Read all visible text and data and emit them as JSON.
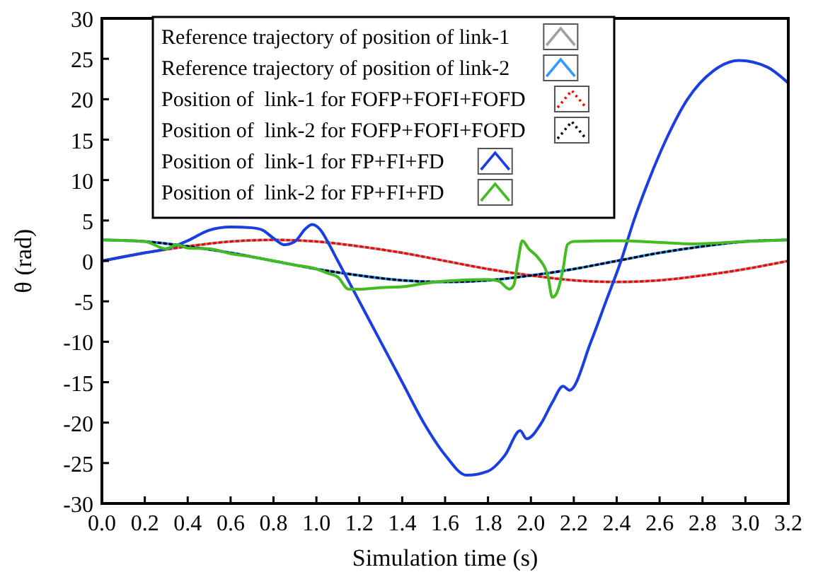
{
  "chart_data": {
    "type": "line",
    "xlabel": "Simulation time (s)",
    "ylabel": "θ (rad)",
    "xlim": [
      0,
      3.2
    ],
    "ylim": [
      -30,
      30
    ],
    "xticks": [
      {
        "value": 0,
        "label": "0.0"
      },
      0.2,
      0.4,
      0.6,
      0.8,
      {
        "value": 1,
        "label": "1.0"
      },
      1.2,
      1.4,
      1.6,
      1.8,
      {
        "value": 2,
        "label": "2.0"
      },
      2.2,
      2.4,
      2.6,
      2.8,
      {
        "value": 3,
        "label": "3.0"
      },
      3.2
    ],
    "yticks": [
      -30,
      -25,
      -20,
      -15,
      -10,
      -5,
      0,
      5,
      10,
      15,
      20,
      25,
      30
    ],
    "grid": false,
    "legend": "top left",
    "x": [
      0,
      0.2,
      0.4,
      0.6,
      0.8,
      1.0,
      1.2,
      1.4,
      1.6,
      1.8,
      2.0,
      2.2,
      2.4,
      2.6,
      2.8,
      3.0,
      3.2
    ],
    "series": [
      {
        "name": "Reference trajectory of position of link-1",
        "color": "#a0a0a0",
        "line_style": "solid",
        "values": [
          0,
          1.0,
          1.8,
          2.4,
          2.6,
          2.4,
          1.8,
          1.0,
          0,
          -1.0,
          -1.8,
          -2.4,
          -2.6,
          -2.4,
          -1.8,
          -1.0,
          0
        ]
      },
      {
        "name": "Reference trajectory of position of link-2",
        "color": "#3399ff",
        "line_style": "solid",
        "values": [
          2.6,
          2.4,
          1.8,
          1.0,
          0,
          -1.0,
          -1.8,
          -2.4,
          -2.6,
          -2.4,
          -1.8,
          -1.0,
          0,
          1.0,
          1.8,
          2.4,
          2.6
        ]
      },
      {
        "name": "Position of  link-1 for FOFP+FOFI+FOFD",
        "color": "#ff0000",
        "line_style": "dotted",
        "values": [
          0,
          1.0,
          1.8,
          2.4,
          2.6,
          2.4,
          1.8,
          1.0,
          0,
          -1.0,
          -1.8,
          -2.4,
          -2.6,
          -2.4,
          -1.8,
          -1.0,
          0
        ]
      },
      {
        "name": "Position of  link-2 for FOFP+FOFI+FOFD",
        "color": "#000000",
        "line_style": "dotted",
        "values": [
          2.6,
          2.4,
          1.8,
          1.0,
          0,
          -1.0,
          -1.8,
          -2.4,
          -2.6,
          -2.4,
          -1.8,
          -1.0,
          0,
          1.0,
          1.8,
          2.4,
          2.6
        ]
      },
      {
        "name": "Position of  link-1 for FP+FI+FD",
        "color": "#1a3fe0",
        "line_style": "solid",
        "x": [
          0,
          0.2,
          0.3,
          0.4,
          0.5,
          0.6,
          0.7,
          0.75,
          0.8,
          0.85,
          0.9,
          0.95,
          0.98,
          1.02,
          1.05,
          1.1,
          1.2,
          1.3,
          1.4,
          1.5,
          1.6,
          1.7,
          1.8,
          1.88,
          1.95,
          1.98,
          2.05,
          2.1,
          2.15,
          2.18,
          2.28,
          2.35,
          2.42,
          2.48,
          2.55,
          2.63,
          2.73,
          2.85,
          2.97,
          3.1,
          3.2
        ],
        "values": [
          0,
          1.0,
          1.5,
          2.5,
          3.8,
          4.2,
          4.1,
          3.8,
          2.8,
          2.0,
          2.4,
          4.0,
          4.5,
          3.8,
          2.5,
          0,
          -5,
          -10,
          -15,
          -20,
          -24,
          -26.5,
          -26,
          -24,
          -21,
          -22,
          -20,
          -17.5,
          -15.5,
          -16,
          -10,
          -5,
          0,
          5,
          10,
          15,
          20,
          23.5,
          24.8,
          24,
          22
        ]
      },
      {
        "name": "Position of  link-2 for FP+FI+FD",
        "color": "#44bb22",
        "line_style": "solid",
        "x": [
          0,
          0.2,
          0.3,
          0.35,
          0.4,
          0.5,
          0.6,
          0.7,
          0.8,
          0.9,
          1.0,
          1.05,
          1.1,
          1.15,
          1.2,
          1.3,
          1.4,
          1.5,
          1.6,
          1.8,
          1.85,
          1.9,
          1.92,
          1.94,
          1.96,
          1.99,
          2.03,
          2.08,
          2.1,
          2.12,
          2.15,
          2.17,
          2.2,
          2.4,
          2.6,
          2.76,
          3.0,
          3.2
        ],
        "values": [
          2.6,
          2.4,
          1.5,
          2.0,
          1.6,
          1.5,
          0.9,
          0.5,
          0,
          -0.5,
          -1.0,
          -1.5,
          -2.0,
          -3.5,
          -3.5,
          -3.3,
          -3.2,
          -2.8,
          -2.5,
          -2.3,
          -2.5,
          -3.5,
          -3.0,
          0,
          2.5,
          1.5,
          0.5,
          -2.0,
          -4.5,
          -4.0,
          -1.0,
          2.0,
          2.4,
          2.5,
          2.3,
          2.1,
          2.4,
          2.6
        ]
      }
    ]
  }
}
